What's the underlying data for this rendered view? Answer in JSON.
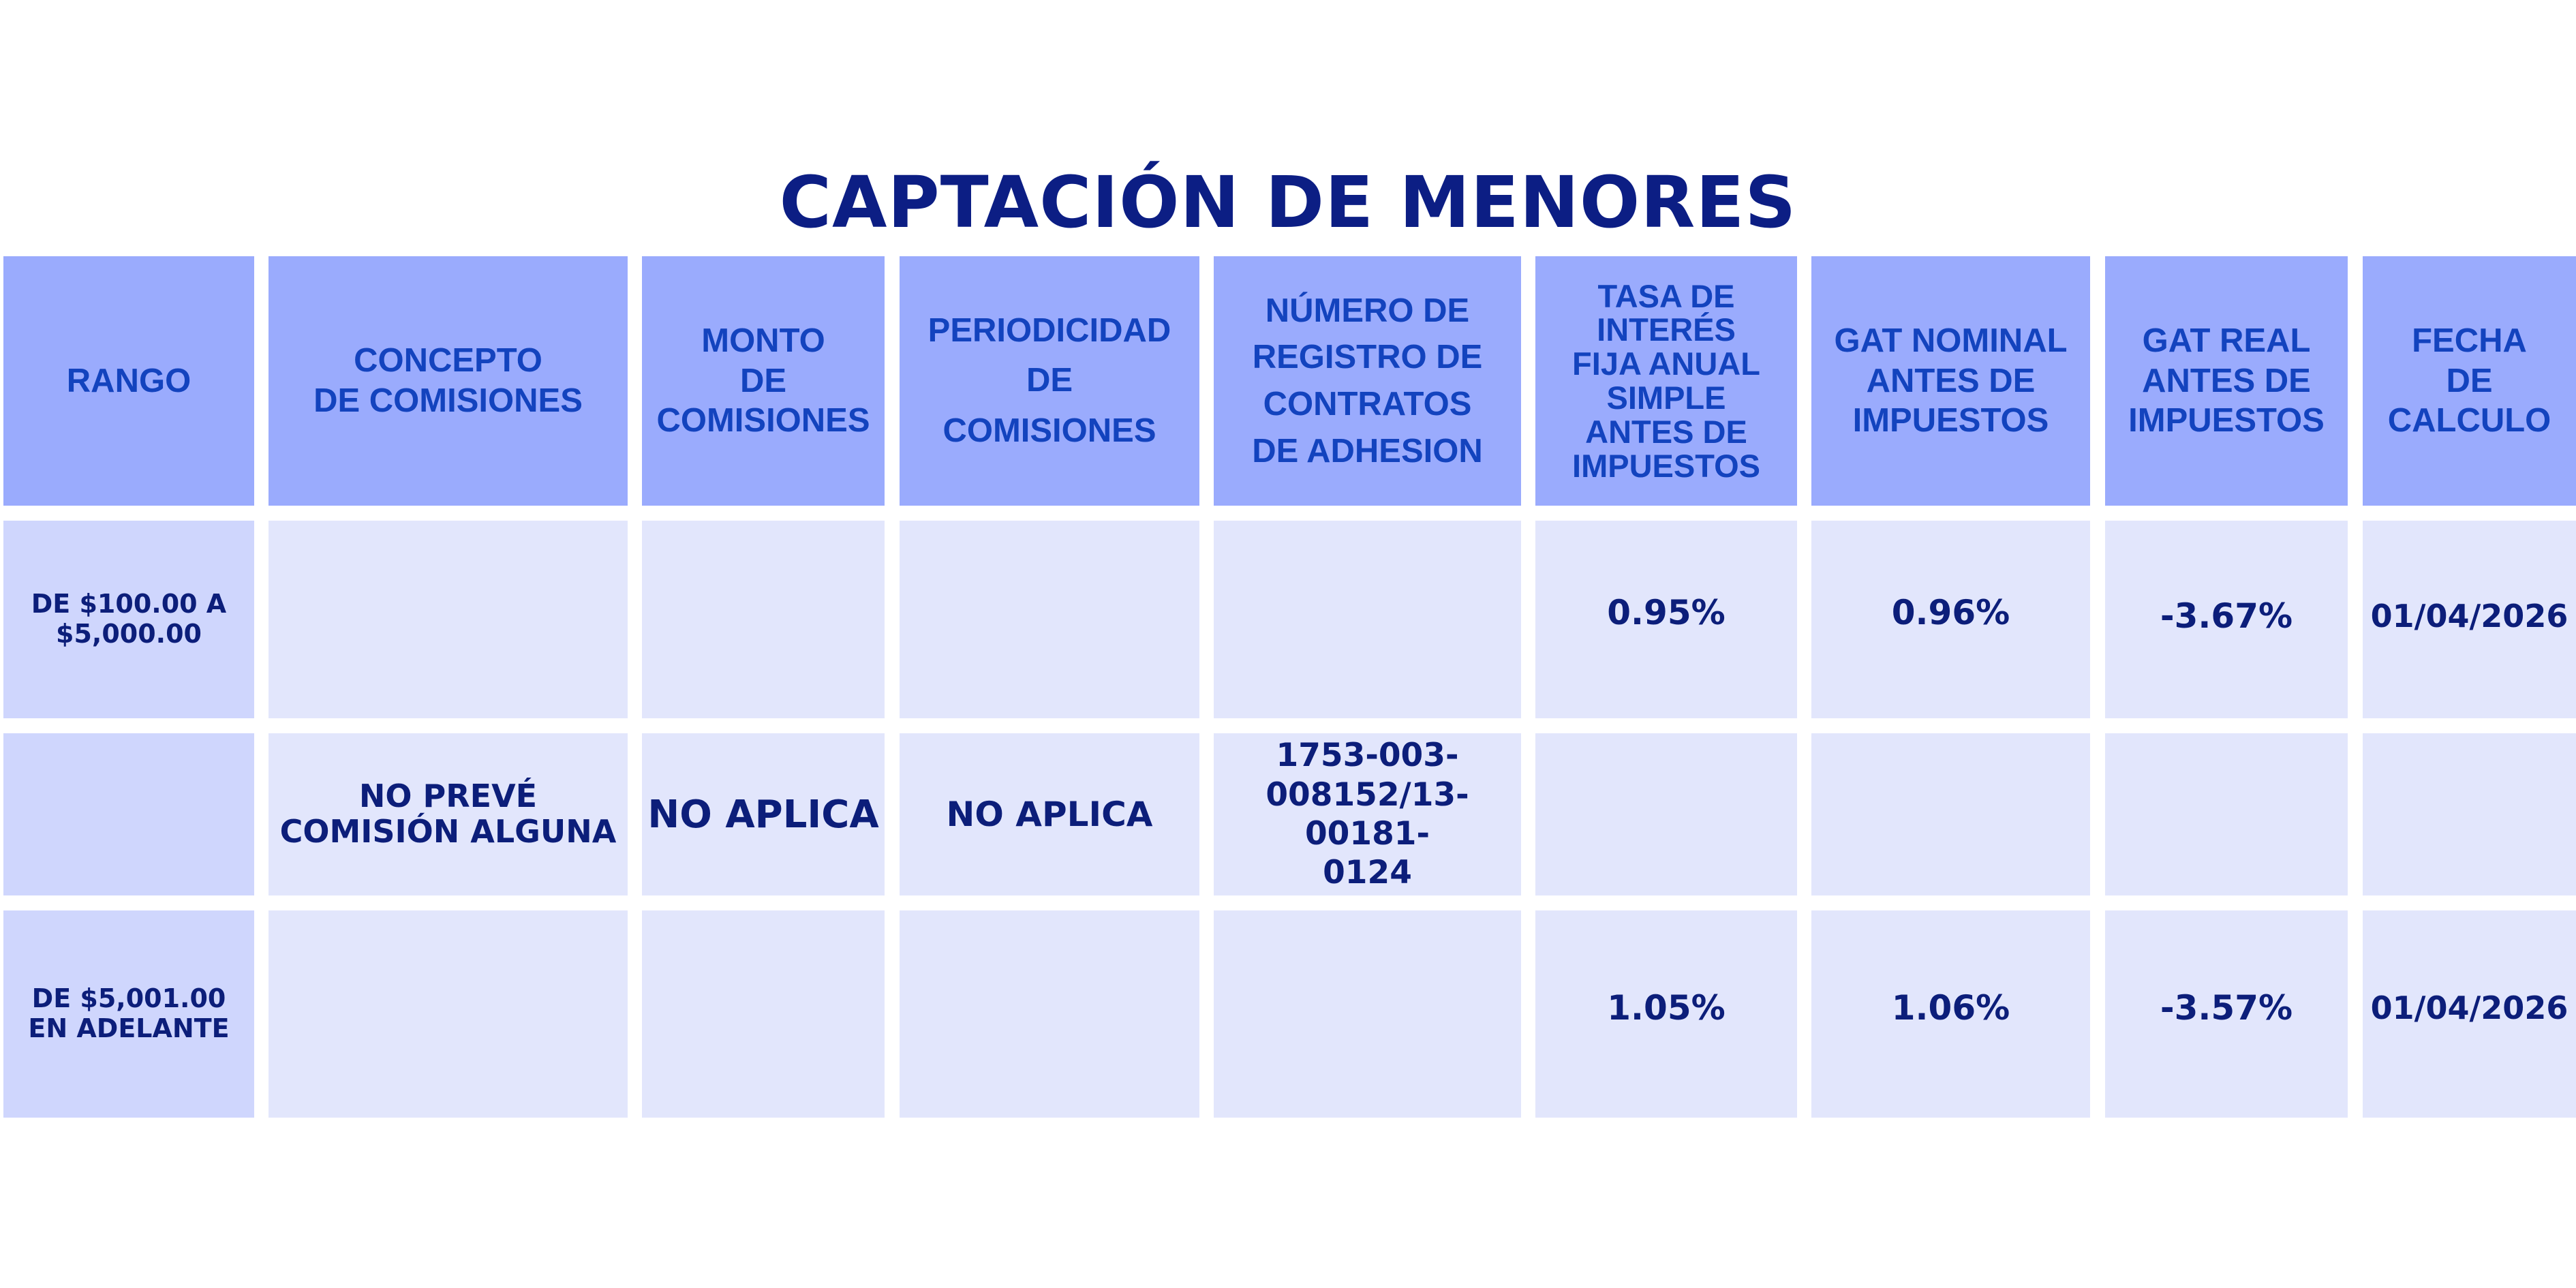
{
  "title": "CAPTACIÓN DE MENORES",
  "headers": {
    "rango": "RANGO",
    "concepto": "CONCEPTO\nDE COMISIONES",
    "monto": "MONTO\nDE\nCOMISIONES",
    "periodicidad": "PERIODICIDAD\nDE\nCOMISIONES",
    "registro": "NÚMERO DE\nREGISTRO DE\nCONTRATOS\nDE ADHESION",
    "tasa": "TASA DE\nINTERÉS\nFIJA ANUAL\nSIMPLE\nANTES DE\nIMPUESTOS",
    "gat_nominal": "GAT NOMINAL\nANTES DE\nIMPUESTOS",
    "gat_real": "GAT REAL\nANTES DE\nIMPUESTOS",
    "fecha": "FECHA\nDE\nCALCULO"
  },
  "rows": {
    "r1": {
      "rango": "DE $100.00 A\n$5,000.00",
      "tasa": "0.95%",
      "gat_nominal": "0.96%",
      "gat_real": "-3.67%",
      "fecha": "01/04/2026"
    },
    "r2": {
      "concepto": "NO PREVÉ\nCOMISIÓN ALGUNA",
      "monto": "NO APLICA",
      "periodicidad": "NO APLICA",
      "registro": "1753-003-\n008152/13-00181-\n0124"
    },
    "r3": {
      "rango": "DE $5,001.00\nEN ADELANTE",
      "tasa": "1.05%",
      "gat_nominal": "1.06%",
      "gat_real": "-3.57%",
      "fecha": "01/04/2026"
    }
  },
  "colors": {
    "title": "#0c1e84",
    "header_bg": "#9aabfd",
    "header_text": "#1343be",
    "body_bg": "#e2e6fc",
    "rank_bg": "#cfd6fd",
    "body_text": "#0c1e7a"
  }
}
